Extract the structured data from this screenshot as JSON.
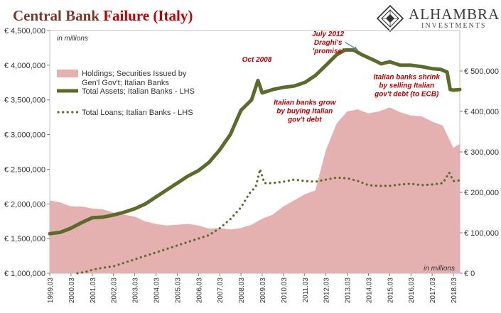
{
  "header": {
    "title_part1": "Central Bank",
    "title_part2": "Failure (Italy)"
  },
  "logo": {
    "name": "ALHAMBRA",
    "sub": "INVESTMENTS"
  },
  "colors": {
    "title": "#7a3a2a",
    "title_accent": "#c00000",
    "holdings_fill": "#e4b0b0",
    "total_assets": "#5b6b2a",
    "total_loans": "#5b6b2a",
    "annotation": "#c00000",
    "arrow": "#4f81bd"
  },
  "chart_data": {
    "type": "area",
    "unit_left": "in millions",
    "unit_right": "in millions",
    "left_axis": {
      "min": 1000000,
      "max": 4500000,
      "ticks": [
        1000000,
        1500000,
        2000000,
        2500000,
        3000000,
        3500000,
        4000000,
        4500000
      ],
      "tick_labels": [
        "€ 1,000,000",
        "€ 1,500,000",
        "€ 2,000,000",
        "€ 2,500,000",
        "€ 3,000,000",
        "€ 3,500,000",
        "€ 4,000,000",
        "€ 4,500,000"
      ]
    },
    "right_axis": {
      "min": 0,
      "max": 600000,
      "ticks": [
        0,
        100000,
        200000,
        300000,
        400000,
        500000
      ],
      "tick_labels": [
        "€ 0",
        "€ 100,000",
        "€ 200,000",
        "€ 300,000",
        "€ 400,000",
        "€ 500,000"
      ]
    },
    "x_range": [
      1999.0,
      2018.3
    ],
    "x_labels": [
      "1999.03",
      "2000.03",
      "2001.03",
      "2002.03",
      "2003.03",
      "2004.03",
      "2005.03",
      "2006.03",
      "2007.03",
      "2008.03",
      "2009.03",
      "2010.03",
      "2011.03",
      "2012.03",
      "2013.03",
      "2014.03",
      "2015.03",
      "2016.03",
      "2017.03",
      "2018.03"
    ],
    "x_label_values": [
      1999,
      2000,
      2001,
      2002,
      2003,
      2004,
      2005,
      2006,
      2007,
      2008,
      2009,
      2010,
      2011,
      2012,
      2013,
      2014,
      2015,
      2016,
      2017,
      2018
    ],
    "legend": [
      {
        "name": "Holdings; Securities Issued by Gen'l Gov't; Italian Banks",
        "lines": [
          "Holdings; Securities Issued by",
          "Gen'l Gov't; Italian Banks"
        ],
        "style": "area"
      },
      {
        "name": "Total Assets; Italian Banks - LHS",
        "lines": [
          "Total Assets; Italian Banks - LHS"
        ],
        "style": "line"
      },
      {
        "name": "Total Loans; Italian Banks - LHS",
        "lines": [
          "Total Loans; Italian Banks - LHS"
        ],
        "style": "dots"
      }
    ],
    "series": [
      {
        "name": "Holdings; Securities Issued by Gen'l Gov't; Italian Banks",
        "axis": "right",
        "x": [
          1999.0,
          1999.5,
          2000.0,
          2000.5,
          2001.0,
          2001.5,
          2002.0,
          2002.5,
          2003.0,
          2003.5,
          2004.0,
          2004.5,
          2005.0,
          2005.5,
          2006.0,
          2006.5,
          2007.0,
          2007.5,
          2008.0,
          2008.5,
          2009.0,
          2009.5,
          2010.0,
          2010.5,
          2011.0,
          2011.5,
          2012.0,
          2012.5,
          2013.0,
          2013.5,
          2014.0,
          2014.5,
          2015.0,
          2015.5,
          2016.0,
          2016.5,
          2017.0,
          2017.5,
          2018.0,
          2018.3
        ],
        "values": [
          180000,
          175000,
          165000,
          165000,
          160000,
          158000,
          150000,
          145000,
          140000,
          128000,
          122000,
          118000,
          120000,
          122000,
          118000,
          110000,
          112000,
          108000,
          112000,
          120000,
          135000,
          145000,
          165000,
          180000,
          195000,
          205000,
          305000,
          370000,
          400000,
          405000,
          395000,
          400000,
          410000,
          398000,
          390000,
          388000,
          375000,
          365000,
          310000,
          320000
        ]
      },
      {
        "name": "Total Assets; Italian Banks - LHS",
        "axis": "left",
        "x": [
          1999.0,
          1999.5,
          2000.0,
          2000.5,
          2001.0,
          2001.5,
          2002.0,
          2002.5,
          2003.0,
          2003.5,
          2004.0,
          2004.5,
          2005.0,
          2005.5,
          2006.0,
          2006.5,
          2007.0,
          2007.5,
          2008.0,
          2008.5,
          2008.8,
          2009.0,
          2009.5,
          2010.0,
          2010.5,
          2011.0,
          2011.5,
          2012.0,
          2012.5,
          2012.9,
          2013.3,
          2013.7,
          2014.2,
          2014.6,
          2015.0,
          2015.5,
          2016.0,
          2016.5,
          2017.0,
          2017.4,
          2017.7,
          2017.85,
          2018.0,
          2018.3
        ],
        "values": [
          1570000,
          1590000,
          1650000,
          1730000,
          1800000,
          1810000,
          1840000,
          1880000,
          1930000,
          2000000,
          2100000,
          2200000,
          2300000,
          2400000,
          2480000,
          2600000,
          2780000,
          3000000,
          3350000,
          3500000,
          3780000,
          3600000,
          3650000,
          3680000,
          3700000,
          3750000,
          3850000,
          4000000,
          4150000,
          4220000,
          4220000,
          4150000,
          4080000,
          4020000,
          4050000,
          4000000,
          4000000,
          3980000,
          3950000,
          3940000,
          3900000,
          3650000,
          3640000,
          3650000
        ]
      },
      {
        "name": "Total Loans; Italian Banks - LHS",
        "axis": "left",
        "x": [
          2000.3,
          2000.7,
          2001.0,
          2001.5,
          2002.0,
          2002.5,
          2003.0,
          2003.5,
          2004.0,
          2004.5,
          2005.0,
          2005.5,
          2006.0,
          2006.5,
          2007.0,
          2007.5,
          2008.0,
          2008.4,
          2008.7,
          2008.9,
          2009.1,
          2009.5,
          2010.0,
          2010.5,
          2011.0,
          2011.5,
          2012.0,
          2012.5,
          2013.0,
          2013.5,
          2014.0,
          2014.5,
          2015.0,
          2015.5,
          2016.0,
          2016.5,
          2017.0,
          2017.5,
          2017.8,
          2018.0,
          2018.3
        ],
        "values": [
          1000000,
          1020000,
          1050000,
          1080000,
          1100000,
          1150000,
          1200000,
          1250000,
          1300000,
          1350000,
          1400000,
          1450000,
          1500000,
          1550000,
          1650000,
          1780000,
          1950000,
          2150000,
          2250000,
          2500000,
          2300000,
          2300000,
          2320000,
          2350000,
          2330000,
          2320000,
          2350000,
          2380000,
          2370000,
          2330000,
          2270000,
          2260000,
          2260000,
          2280000,
          2290000,
          2270000,
          2280000,
          2300000,
          2450000,
          2330000,
          2340000
        ]
      }
    ],
    "annotations": [
      {
        "lines": [
          "Oct 2008"
        ],
        "x": 2008.75,
        "y": 4050000
      },
      {
        "lines": [
          "July 2012",
          "Draghi's",
          "'promise'"
        ],
        "x": 2012.1,
        "y": 4420000
      },
      {
        "lines": [
          "Italian banks grow",
          "by buying Italian",
          "gov't debt"
        ],
        "x": 2011.0,
        "y": 3430000
      },
      {
        "lines": [
          "Italian banks shrink",
          "by selling Italian",
          "gov't debt (to ECB)"
        ],
        "x": 2015.8,
        "y": 3800000
      }
    ],
    "arrow": {
      "from": [
        2012.9,
        4330000
      ],
      "to": [
        2013.5,
        4220000
      ]
    }
  }
}
